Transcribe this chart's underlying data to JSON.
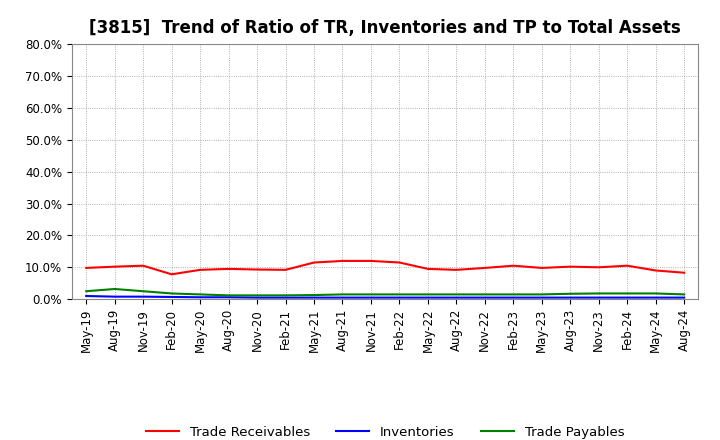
{
  "title": "[3815]  Trend of Ratio of TR, Inventories and TP to Total Assets",
  "xlabels": [
    "May-19",
    "Aug-19",
    "Nov-19",
    "Feb-20",
    "May-20",
    "Aug-20",
    "Nov-20",
    "Feb-21",
    "May-21",
    "Aug-21",
    "Nov-21",
    "Feb-22",
    "May-22",
    "Aug-22",
    "Nov-22",
    "Feb-23",
    "May-23",
    "Aug-23",
    "Nov-23",
    "Feb-24",
    "May-24",
    "Aug-24"
  ],
  "trade_receivables": [
    9.8,
    10.2,
    10.5,
    7.8,
    9.2,
    9.5,
    9.3,
    9.2,
    11.5,
    12.0,
    12.0,
    11.5,
    9.5,
    9.2,
    9.8,
    10.5,
    9.8,
    10.2,
    10.0,
    10.5,
    9.0,
    8.3
  ],
  "inventories": [
    1.0,
    0.8,
    0.8,
    0.7,
    0.6,
    0.6,
    0.5,
    0.5,
    0.5,
    0.5,
    0.5,
    0.5,
    0.5,
    0.5,
    0.5,
    0.5,
    0.5,
    0.5,
    0.5,
    0.5,
    0.5,
    0.5
  ],
  "trade_payables": [
    2.5,
    3.2,
    2.5,
    1.8,
    1.5,
    1.2,
    1.2,
    1.2,
    1.3,
    1.5,
    1.5,
    1.5,
    1.5,
    1.5,
    1.5,
    1.5,
    1.5,
    1.7,
    1.8,
    1.8,
    1.8,
    1.5
  ],
  "tr_color": "#FF0000",
  "inv_color": "#0000FF",
  "tp_color": "#008000",
  "ylim": [
    0,
    80
  ],
  "yticks": [
    0,
    10,
    20,
    30,
    40,
    50,
    60,
    70,
    80
  ],
  "ytick_labels": [
    "0.0%",
    "10.0%",
    "20.0%",
    "30.0%",
    "40.0%",
    "50.0%",
    "60.0%",
    "70.0%",
    "80.0%"
  ],
  "background_color": "#FFFFFF",
  "plot_bg_color": "#FFFFFF",
  "grid_color": "#999999",
  "legend_labels": [
    "Trade Receivables",
    "Inventories",
    "Trade Payables"
  ],
  "title_fontsize": 12,
  "tick_fontsize": 8.5,
  "legend_fontsize": 9.5
}
